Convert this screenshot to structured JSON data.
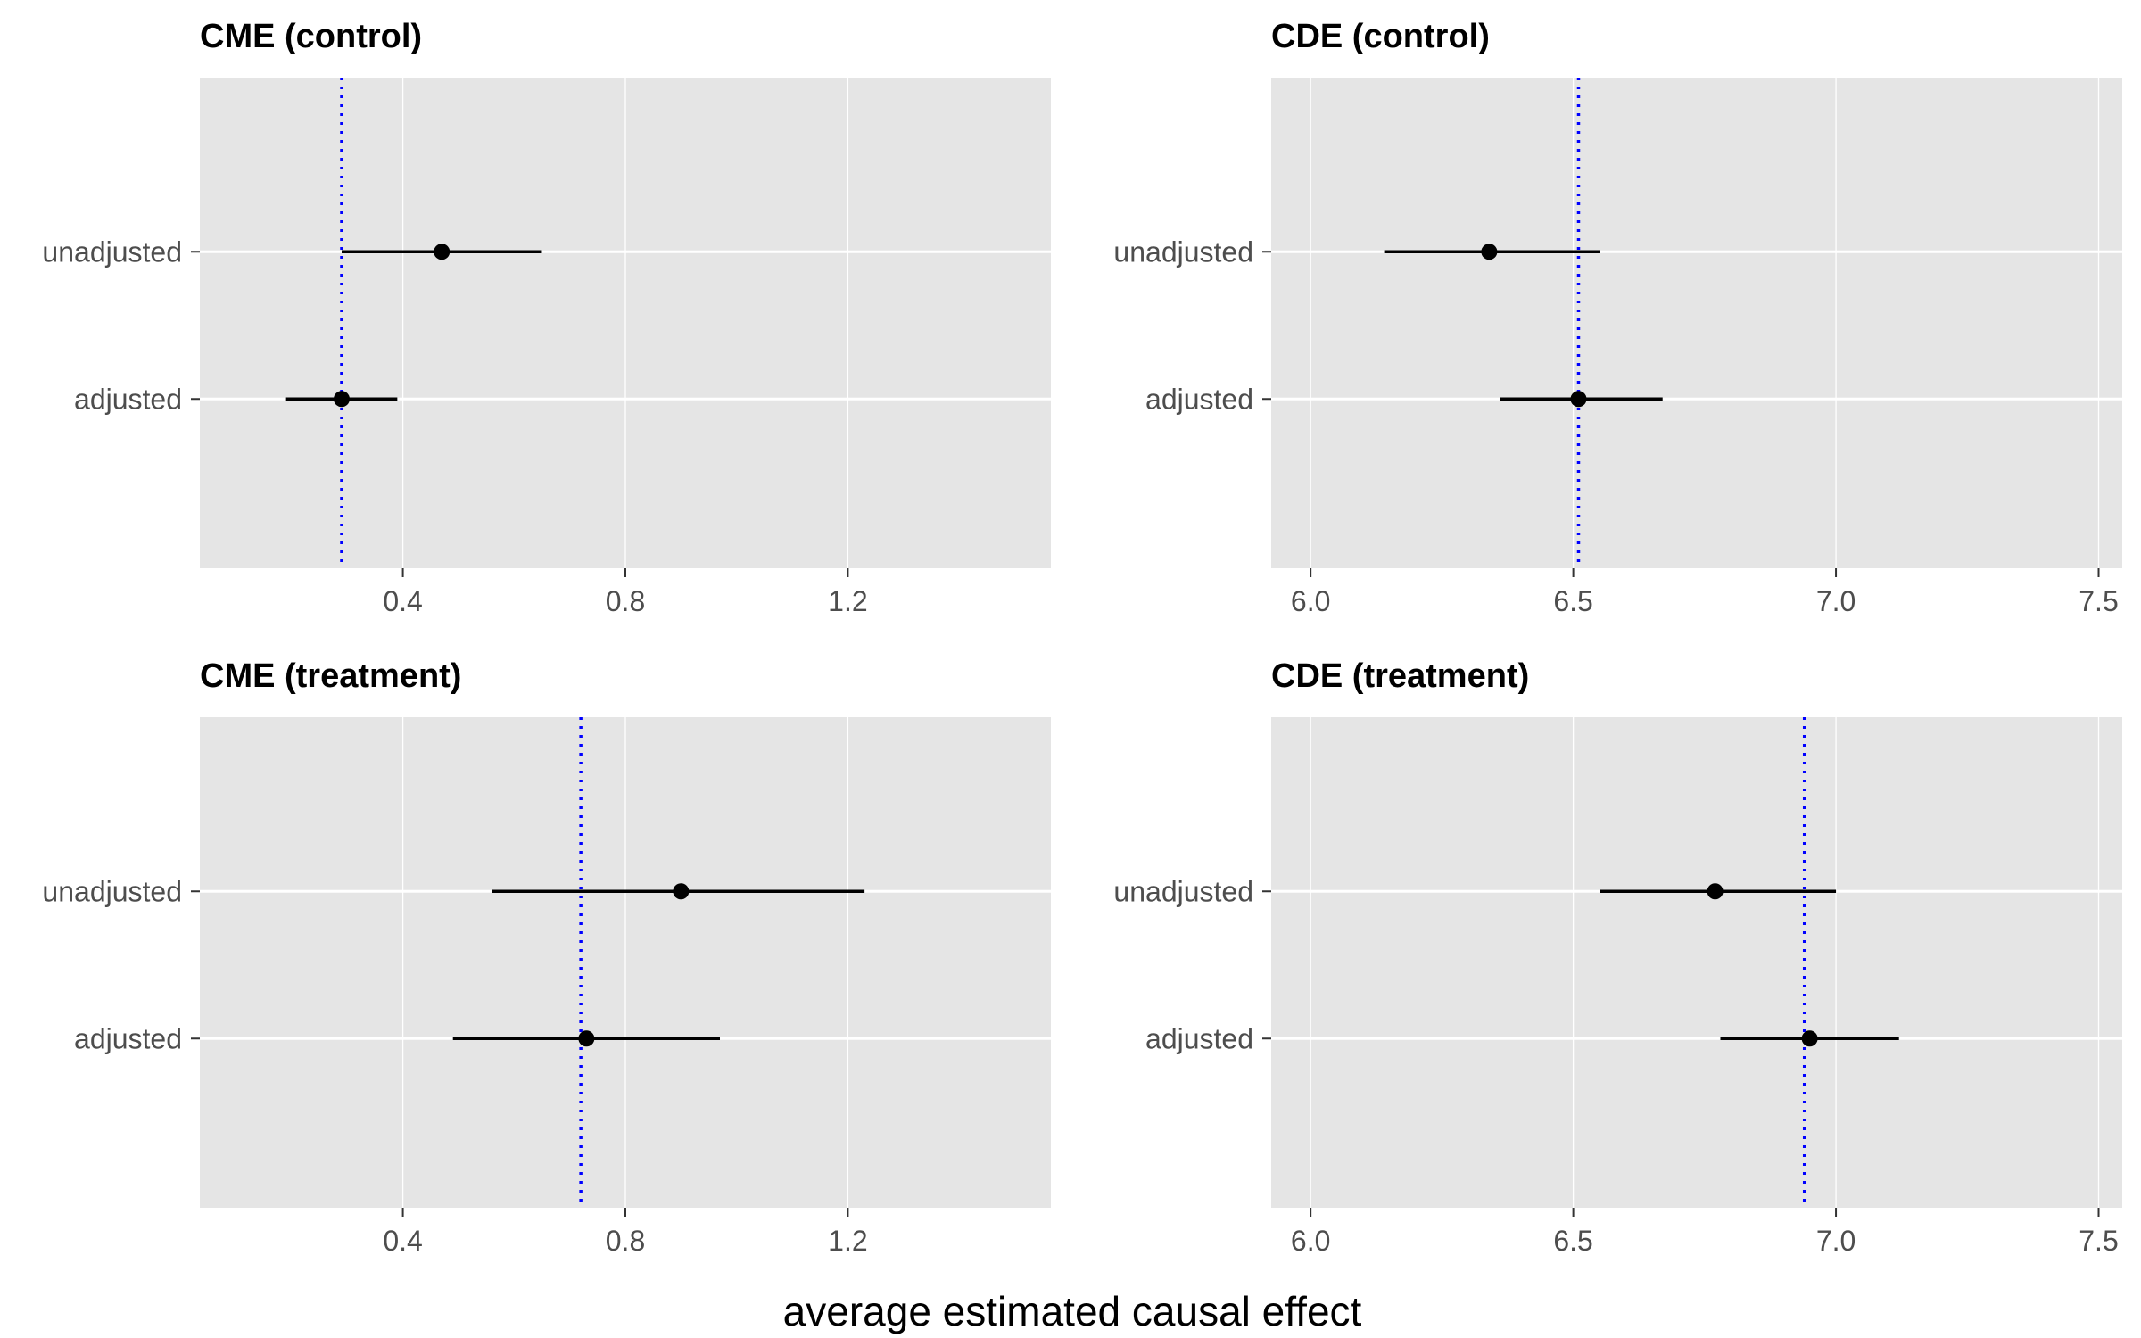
{
  "figure": {
    "xlabel": "average estimated causal effect"
  },
  "colors": {
    "panel_background": "#e5e5e5",
    "gridline": "#ffffff",
    "point_and_interval": "#000000",
    "reference_line": "#0000ff",
    "tick_label": "#4d4d4d"
  },
  "chart_data": [
    {
      "type": "scatter",
      "title": "CME (control)",
      "categories": [
        "unadjusted",
        "adjusted"
      ],
      "estimates": [
        0.47,
        0.29
      ],
      "lower": [
        0.29,
        0.19
      ],
      "upper": [
        0.65,
        0.39
      ],
      "reference_value": 0.29,
      "reference_style": "dotted",
      "xlim": [
        0.035,
        1.565
      ],
      "xticks": [
        0.4,
        0.8,
        1.2
      ],
      "xtick_labels": [
        "0.4",
        "0.8",
        "1.2"
      ],
      "grid": true,
      "legend": "none"
    },
    {
      "type": "scatter",
      "title": "CDE (control)",
      "categories": [
        "unadjusted",
        "adjusted"
      ],
      "estimates": [
        6.34,
        6.51
      ],
      "lower": [
        6.14,
        6.36
      ],
      "upper": [
        6.55,
        6.67
      ],
      "reference_value": 6.51,
      "reference_style": "dotted",
      "xlim": [
        5.925,
        7.545
      ],
      "xticks": [
        6.0,
        6.5,
        7.0,
        7.5
      ],
      "xtick_labels": [
        "6.0",
        "6.5",
        "7.0",
        "7.5"
      ],
      "grid": true,
      "legend": "none"
    },
    {
      "type": "scatter",
      "title": "CME (treatment)",
      "categories": [
        "unadjusted",
        "adjusted"
      ],
      "estimates": [
        0.9,
        0.73
      ],
      "lower": [
        0.56,
        0.49
      ],
      "upper": [
        1.23,
        0.97
      ],
      "reference_value": 0.72,
      "reference_style": "dotted",
      "xlim": [
        0.035,
        1.565
      ],
      "xticks": [
        0.4,
        0.8,
        1.2
      ],
      "xtick_labels": [
        "0.4",
        "0.8",
        "1.2"
      ],
      "grid": true,
      "legend": "none"
    },
    {
      "type": "scatter",
      "title": "CDE (treatment)",
      "categories": [
        "unadjusted",
        "adjusted"
      ],
      "estimates": [
        6.77,
        6.95
      ],
      "lower": [
        6.55,
        6.78
      ],
      "upper": [
        7.0,
        7.12
      ],
      "reference_value": 6.94,
      "reference_style": "dotted",
      "xlim": [
        5.925,
        7.545
      ],
      "xticks": [
        6.0,
        6.5,
        7.0,
        7.5
      ],
      "xtick_labels": [
        "6.0",
        "6.5",
        "7.0",
        "7.5"
      ],
      "grid": true,
      "legend": "none"
    }
  ]
}
